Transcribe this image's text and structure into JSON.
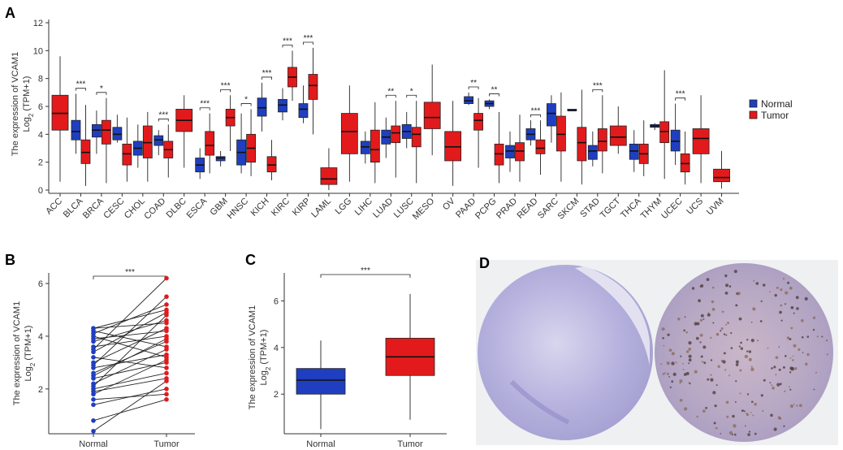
{
  "colors": {
    "normal": "#1f3fc0",
    "tumor": "#e31a1c",
    "line": "#222222",
    "point_outline": "#999999"
  },
  "chart_data": [
    {
      "panel": "A",
      "type": "box",
      "ylabel_line1": "The expression of VCAM1",
      "ylabel_line2": "Log2 (TPM+1)",
      "ylim": [
        0,
        12
      ],
      "yticks": [
        "0",
        "2",
        "4",
        "6",
        "8",
        "10",
        "12"
      ],
      "legend": [
        "Normal",
        "Tumor"
      ],
      "cancers": [
        {
          "name": "ACC",
          "tumor": [
            0.6,
            4.3,
            5.5,
            6.8,
            9.6
          ],
          "sig": ""
        },
        {
          "name": "BLCA",
          "normal": [
            2.6,
            3.6,
            4.2,
            5.0,
            6.9
          ],
          "tumor": [
            0.3,
            1.9,
            2.7,
            3.6,
            6.1
          ],
          "sig": "***"
        },
        {
          "name": "BRCA",
          "normal": [
            2.6,
            3.8,
            4.3,
            4.7,
            5.7
          ],
          "tumor": [
            0.5,
            3.3,
            4.3,
            5.0,
            6.6
          ],
          "sig": "*"
        },
        {
          "name": "CESC",
          "normal": [
            3.4,
            3.6,
            4.0,
            4.5,
            5.4
          ],
          "tumor": [
            0.6,
            1.8,
            2.6,
            3.3,
            5.2
          ],
          "sig": ""
        },
        {
          "name": "CHOL",
          "normal": [
            1.6,
            2.5,
            3.0,
            3.5,
            4.7
          ],
          "tumor": [
            0.6,
            2.3,
            3.4,
            4.6,
            5.6
          ],
          "sig": ""
        },
        {
          "name": "COAD",
          "normal": [
            2.5,
            3.2,
            3.6,
            3.9,
            4.3
          ],
          "tumor": [
            0.9,
            2.3,
            2.9,
            3.5,
            4.7
          ],
          "sig": "***"
        },
        {
          "name": "DLBC",
          "tumor": [
            1.6,
            4.2,
            5.0,
            5.8,
            6.8
          ],
          "sig": ""
        },
        {
          "name": "ESCA",
          "normal": [
            0.8,
            1.3,
            1.8,
            2.3,
            3.0
          ],
          "tumor": [
            1.2,
            2.5,
            3.2,
            4.2,
            5.5
          ],
          "sig": "***"
        },
        {
          "name": "GBM",
          "normal": [
            1.7,
            2.1,
            2.3,
            2.4,
            2.8
          ],
          "tumor": [
            2.8,
            4.6,
            5.2,
            5.8,
            6.8
          ],
          "sig": "***"
        },
        {
          "name": "HNSC",
          "normal": [
            1.2,
            1.8,
            2.7,
            3.6,
            5.5
          ],
          "tumor": [
            1.0,
            2.0,
            3.0,
            4.0,
            5.8
          ],
          "sig": "*"
        },
        {
          "name": "KICH",
          "normal": [
            4.2,
            5.3,
            5.9,
            6.6,
            7.7
          ],
          "tumor": [
            0.7,
            1.3,
            1.8,
            2.4,
            3.6
          ],
          "sig": "***"
        },
        {
          "name": "KIRC",
          "normal": [
            5.0,
            5.6,
            6.1,
            6.5,
            7.3
          ],
          "tumor": [
            6.4,
            7.4,
            8.1,
            8.8,
            10.0
          ],
          "sig": "***"
        },
        {
          "name": "KIRP",
          "normal": [
            4.8,
            5.2,
            5.8,
            6.2,
            7.5
          ],
          "tumor": [
            4.0,
            6.5,
            7.5,
            8.3,
            10.2
          ],
          "sig": "***"
        },
        {
          "name": "LAML",
          "tumor": [
            0.0,
            0.4,
            0.8,
            1.6,
            3.0
          ],
          "sig": ""
        },
        {
          "name": "LGG",
          "tumor": [
            0.6,
            2.6,
            4.2,
            5.5,
            7.5
          ],
          "sig": ""
        },
        {
          "name": "LIHC",
          "normal": [
            1.9,
            2.6,
            3.1,
            3.5,
            4.2
          ],
          "tumor": [
            0.5,
            2.0,
            2.9,
            4.3,
            6.3
          ],
          "sig": ""
        },
        {
          "name": "LUAD",
          "normal": [
            2.3,
            3.3,
            3.8,
            4.3,
            5.2
          ],
          "tumor": [
            0.9,
            3.4,
            4.1,
            4.6,
            6.4
          ],
          "sig": "**"
        },
        {
          "name": "LUSC",
          "normal": [
            3.0,
            3.7,
            4.2,
            4.7,
            5.6
          ],
          "tumor": [
            0.5,
            3.1,
            4.0,
            4.5,
            6.4
          ],
          "sig": "*"
        },
        {
          "name": "MESO",
          "tumor": [
            2.5,
            4.4,
            5.2,
            6.3,
            9.0
          ],
          "sig": ""
        },
        {
          "name": "OV",
          "tumor": [
            0.3,
            2.1,
            3.1,
            4.2,
            6.4
          ],
          "sig": ""
        },
        {
          "name": "PAAD",
          "normal": [
            6.1,
            6.2,
            6.4,
            6.7,
            7.0
          ],
          "tumor": [
            1.6,
            4.3,
            5.0,
            5.5,
            6.6
          ],
          "sig": "**"
        },
        {
          "name": "PCPG",
          "normal": [
            5.8,
            6.0,
            6.2,
            6.4,
            6.5
          ],
          "tumor": [
            0.5,
            1.8,
            2.6,
            3.3,
            5.6
          ],
          "sig": "**"
        },
        {
          "name": "PRAD",
          "normal": [
            1.3,
            2.3,
            2.8,
            3.2,
            4.2
          ],
          "tumor": [
            0.6,
            2.1,
            2.8,
            3.4,
            5.4
          ],
          "sig": ""
        },
        {
          "name": "READ",
          "normal": [
            3.2,
            3.6,
            4.0,
            4.4,
            5.0
          ],
          "tumor": [
            1.1,
            2.6,
            3.0,
            3.6,
            5.0
          ],
          "sig": "***"
        },
        {
          "name": "SARC",
          "normal": [
            3.4,
            4.6,
            5.5,
            6.2,
            6.8
          ],
          "tumor": [
            0.6,
            2.8,
            4.0,
            5.3,
            7.0
          ],
          "sig": ""
        },
        {
          "name": "SKCM",
          "normal": [
            5.7,
            5.7,
            5.7,
            5.8,
            5.8
          ],
          "tumor": [
            0.4,
            2.1,
            3.4,
            4.5,
            7.2
          ],
          "sig": ""
        },
        {
          "name": "STAD",
          "normal": [
            1.7,
            2.2,
            2.8,
            3.2,
            4.2
          ],
          "tumor": [
            1.2,
            2.8,
            3.5,
            4.4,
            6.8
          ],
          "sig": "***"
        },
        {
          "name": "TGCT",
          "tumor": [
            2.6,
            3.2,
            3.8,
            4.6,
            6.0
          ],
          "sig": ""
        },
        {
          "name": "THCA",
          "normal": [
            1.3,
            2.2,
            2.8,
            3.3,
            4.3
          ],
          "tumor": [
            1.0,
            1.9,
            2.6,
            3.3,
            5.0
          ],
          "sig": ""
        },
        {
          "name": "THYM",
          "normal": [
            4.3,
            4.5,
            4.6,
            4.7,
            4.8
          ],
          "tumor": [
            0.8,
            3.4,
            4.2,
            4.9,
            8.6
          ],
          "sig": ""
        },
        {
          "name": "UCEC",
          "normal": [
            1.8,
            2.8,
            3.5,
            4.3,
            6.2
          ],
          "tumor": [
            0.4,
            1.3,
            1.9,
            2.6,
            4.2
          ],
          "sig": "***"
        },
        {
          "name": "UCS",
          "tumor": [
            0.5,
            2.6,
            3.7,
            4.4,
            6.8
          ],
          "sig": ""
        },
        {
          "name": "UVM",
          "tumor": [
            0.1,
            0.6,
            0.9,
            1.5,
            2.8
          ],
          "sig": ""
        }
      ]
    },
    {
      "panel": "B",
      "type": "paired",
      "ylabel_line1": "The expression of VCAM1",
      "ylabel_line2": "Log2 (TPM+1)",
      "ylim": [
        0.3,
        6.4
      ],
      "yticks": [
        "2",
        "4",
        "6"
      ],
      "categories": [
        "Normal",
        "Tumor"
      ],
      "sig": "***",
      "pairs": [
        [
          0.4,
          2.3
        ],
        [
          0.8,
          1.6
        ],
        [
          1.4,
          2.0
        ],
        [
          1.6,
          1.8
        ],
        [
          1.8,
          3.1
        ],
        [
          2.0,
          2.6
        ],
        [
          2.2,
          3.5
        ],
        [
          2.4,
          3.0
        ],
        [
          2.6,
          3.8
        ],
        [
          2.8,
          3.3
        ],
        [
          3.0,
          4.3
        ],
        [
          3.2,
          2.8
        ],
        [
          3.4,
          4.9
        ],
        [
          3.6,
          4.0
        ],
        [
          3.8,
          4.6
        ],
        [
          4.0,
          3.2
        ],
        [
          4.1,
          5.2
        ],
        [
          4.2,
          3.6
        ],
        [
          4.3,
          4.5
        ],
        [
          2.9,
          5.5
        ],
        [
          2.1,
          4.8
        ],
        [
          3.5,
          6.2
        ],
        [
          2.5,
          3.9
        ],
        [
          3.9,
          4.2
        ],
        [
          1.9,
          2.4
        ],
        [
          4.3,
          5.0
        ]
      ]
    },
    {
      "panel": "C",
      "type": "box",
      "ylabel_line1": "The expression of VCAM1",
      "ylabel_line2": "Log2 (TPM+1)",
      "ylim": [
        0.3,
        7.2
      ],
      "yticks": [
        "2",
        "4",
        "6"
      ],
      "categories": [
        "Normal",
        "Tumor"
      ],
      "sig": "***",
      "boxes": [
        {
          "name": "Normal",
          "stats": [
            0.5,
            2.0,
            2.6,
            3.1,
            4.3
          ]
        },
        {
          "name": "Tumor",
          "stats": [
            0.9,
            2.8,
            3.6,
            4.4,
            6.3
          ]
        }
      ]
    }
  ],
  "panel_d": {
    "label": "D"
  }
}
